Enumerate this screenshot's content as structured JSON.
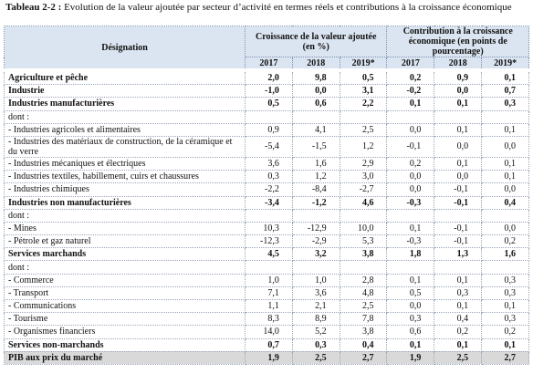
{
  "title": {
    "label": "Tableau 2-2 :",
    "text": "Evolution de la valeur ajoutée par secteur d’activité en termes réels et contributions à la croissance économique"
  },
  "table": {
    "header": {
      "designation": "Désignation",
      "group1": "Croissance de la valeur ajoutée (en %)",
      "group2": "Contribution à la croissance économique (en points de pourcentage)",
      "years": [
        "2017",
        "2018",
        "2019*",
        "2017",
        "2018",
        "2019*"
      ]
    },
    "rows": [
      {
        "label": "Agriculture et pêche",
        "bold": true,
        "values": [
          "2,0",
          "9,8",
          "0,5",
          "0,2",
          "0,9",
          "0,1"
        ]
      },
      {
        "label": "Industrie",
        "bold": true,
        "values": [
          "-1,0",
          "0,0",
          "3,1",
          "-0,2",
          "0,0",
          "0,7"
        ]
      },
      {
        "label": "Industries manufacturières",
        "bold": true,
        "values": [
          "0,5",
          "0,6",
          "2,2",
          "0,1",
          "0,1",
          "0,3"
        ]
      },
      {
        "label": "dont :",
        "values": []
      },
      {
        "label": "- Industries agricoles et alimentaires",
        "values": [
          "0,9",
          "4,1",
          "2,5",
          "0,0",
          "0,1",
          "0,1"
        ]
      },
      {
        "label": "- Industries des matériaux de construction, de la céramique et du verre",
        "values": [
          "-5,4",
          "-1,5",
          "1,2",
          "-0,1",
          "0,0",
          "0,0"
        ]
      },
      {
        "label": "- Industries mécaniques et électriques",
        "values": [
          "3,6",
          "1,6",
          "2,9",
          "0,2",
          "0,1",
          "0,1"
        ]
      },
      {
        "label": "- Industries textiles, habillement, cuirs et chaussures",
        "values": [
          "0,3",
          "1,2",
          "3,0",
          "0,0",
          "0,0",
          "0,1"
        ]
      },
      {
        "label": "- Industries chimiques",
        "values": [
          "-2,2",
          "-8,4",
          "-2,7",
          "0,0",
          "-0,1",
          "0,0"
        ]
      },
      {
        "label": "Industries non manufacturières",
        "bold": true,
        "values": [
          "-3,4",
          "-1,2",
          "4,6",
          "-0,3",
          "-0,1",
          "0,4"
        ]
      },
      {
        "label": "dont :",
        "values": []
      },
      {
        "label": "- Mines",
        "values": [
          "10,3",
          "-12,9",
          "10,0",
          "0,1",
          "-0,1",
          "0,0"
        ]
      },
      {
        "label": "- Pétrole et gaz naturel",
        "values": [
          "-12,3",
          "-2,9",
          "5,3",
          "-0,3",
          "-0,1",
          "0,2"
        ]
      },
      {
        "label": "Services marchands",
        "bold": true,
        "values": [
          "4,5",
          "3,2",
          "3,8",
          "1,8",
          "1,3",
          "1,6"
        ]
      },
      {
        "label": "dont :",
        "values": []
      },
      {
        "label": "- Commerce",
        "values": [
          "1,0",
          "1,0",
          "2,8",
          "0,1",
          "0,1",
          "0,3"
        ]
      },
      {
        "label": "- Transport",
        "values": [
          "7,1",
          "3,6",
          "4,8",
          "0,5",
          "0,3",
          "0,3"
        ]
      },
      {
        "label": "- Communications",
        "values": [
          "1,1",
          "2,1",
          "2,5",
          "0,0",
          "0,1",
          "0,1"
        ]
      },
      {
        "label": "- Tourisme",
        "values": [
          "8,3",
          "8,9",
          "7,8",
          "0,3",
          "0,4",
          "0,3"
        ]
      },
      {
        "label": "- Organismes financiers",
        "values": [
          "14,0",
          "5,2",
          "3,8",
          "0,6",
          "0,2",
          "0,2"
        ]
      },
      {
        "label": "Services non-marchands",
        "bold": true,
        "values": [
          "0,7",
          "0,3",
          "0,4",
          "0,1",
          "0,1",
          "0,1"
        ]
      },
      {
        "label": "PIB aux prix du marché",
        "bold": true,
        "total": true,
        "values": [
          "1,9",
          "2,5",
          "2,7",
          "1,9",
          "2,5",
          "2,7"
        ]
      }
    ]
  }
}
